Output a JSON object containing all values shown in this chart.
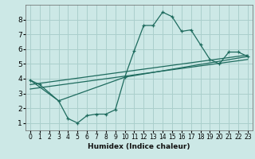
{
  "xlabel": "Humidex (Indice chaleur)",
  "ylabel": "",
  "bg_color": "#cce8e6",
  "grid_color": "#aacfcc",
  "line_color": "#1e6b5e",
  "xlim": [
    -0.5,
    23.5
  ],
  "ylim": [
    0.5,
    9.0
  ],
  "xticks": [
    0,
    1,
    2,
    3,
    4,
    5,
    6,
    7,
    8,
    9,
    10,
    11,
    12,
    13,
    14,
    15,
    16,
    17,
    18,
    19,
    20,
    21,
    22,
    23
  ],
  "yticks": [
    1,
    2,
    3,
    4,
    5,
    6,
    7,
    8
  ],
  "line1_x": [
    0,
    1,
    3,
    4,
    5,
    6,
    7,
    8,
    9,
    10,
    11,
    12,
    13,
    14,
    15,
    16,
    17,
    18,
    19,
    20,
    21,
    22,
    23
  ],
  "line1_y": [
    3.9,
    3.6,
    2.5,
    1.3,
    1.0,
    1.5,
    1.6,
    1.6,
    1.9,
    4.1,
    5.9,
    7.6,
    7.6,
    8.5,
    8.2,
    7.2,
    7.3,
    6.3,
    5.3,
    5.0,
    5.8,
    5.8,
    5.5
  ],
  "line2_x": [
    0,
    3,
    10,
    23
  ],
  "line2_y": [
    3.9,
    2.5,
    4.1,
    5.5
  ],
  "line3_x": [
    0,
    23
  ],
  "line3_y": [
    3.6,
    5.6
  ],
  "line4_x": [
    0,
    23
  ],
  "line4_y": [
    3.3,
    5.3
  ]
}
